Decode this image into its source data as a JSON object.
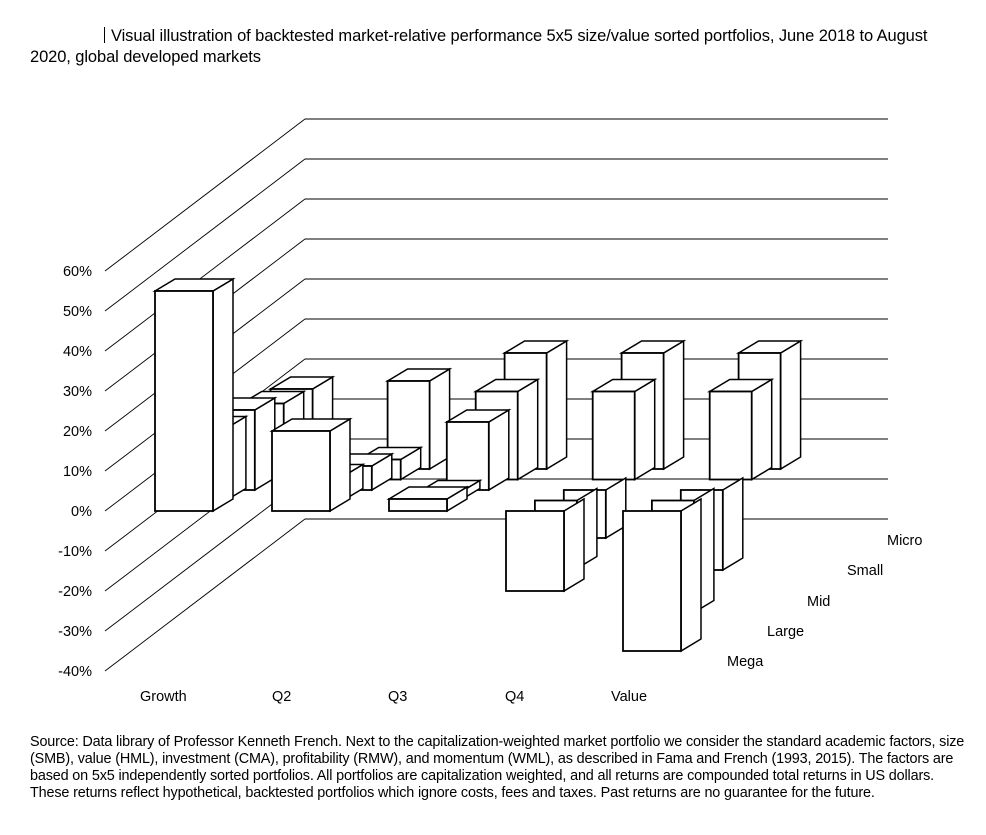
{
  "title": "Visual illustration of backtested market-relative performance 5x5 size/value sorted portfolios, June 2018 to August 2020, global developed markets",
  "source": "Source: Data library of Professor Kenneth French. Next to the capitalization-weighted market portfolio we consider the standard academic factors, size (SMB), value (HML), investment (CMA), profitability (RMW), and momentum (WML), as described in Fama and French (1993, 2015). The factors are based on 5x5 independently sorted portfolios. All portfolios are capitalization weighted, and all returns are compounded total returns in US dollars. These returns reflect hypothetical, backtested portfolios which ignore costs, fees and taxes. Past returns are no guarantee for the future.",
  "chart_data": {
    "type": "bar",
    "style": "3d",
    "categories": [
      "Growth",
      "Q2",
      "Q3",
      "Q4",
      "Value"
    ],
    "ylim": [
      -40,
      60
    ],
    "ytick_labels": [
      "60%",
      "50%",
      "40%",
      "30%",
      "20%",
      "10%",
      "0%",
      "-10%",
      "-20%",
      "-30%",
      "-40%"
    ],
    "grid": true,
    "series": [
      {
        "name": "Mega",
        "values": [
          55,
          20,
          3,
          -20,
          -35
        ]
      },
      {
        "name": "Large",
        "values": [
          18,
          6,
          2,
          -17,
          -28
        ]
      },
      {
        "name": "Mid",
        "values": [
          20,
          6,
          17,
          -12,
          -20
        ]
      },
      {
        "name": "Small",
        "values": [
          19,
          5,
          22,
          22,
          22
        ]
      },
      {
        "name": "Micro",
        "values": [
          20,
          22,
          29,
          29,
          29
        ]
      }
    ]
  }
}
